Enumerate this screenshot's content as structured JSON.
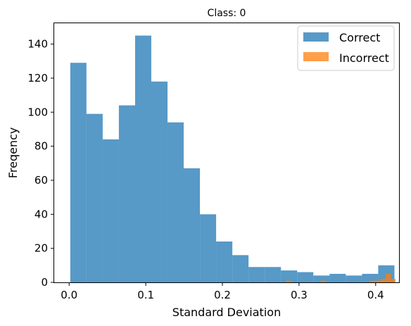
{
  "chart_data": {
    "type": "bar",
    "title": "Class: 0",
    "xlabel": "Standard Deviation",
    "ylabel": "Freqency",
    "xlim": [
      -0.0195,
      0.4305
    ],
    "ylim": [
      0,
      152.25
    ],
    "xticks": [
      {
        "value": 0.0,
        "label": "0.0"
      },
      {
        "value": 0.1,
        "label": "0.1"
      },
      {
        "value": 0.2,
        "label": "0.2"
      },
      {
        "value": 0.3,
        "label": "0.3"
      },
      {
        "value": 0.4,
        "label": "0.4"
      }
    ],
    "yticks": [
      {
        "value": 0,
        "label": "0"
      },
      {
        "value": 20,
        "label": "20"
      },
      {
        "value": 40,
        "label": "40"
      },
      {
        "value": 60,
        "label": "60"
      },
      {
        "value": 80,
        "label": "80"
      },
      {
        "value": 100,
        "label": "100"
      },
      {
        "value": 120,
        "label": "120"
      },
      {
        "value": 140,
        "label": "140"
      }
    ],
    "legend_position": "top-right",
    "grid": false,
    "series": [
      {
        "name": "Correct",
        "color": "#1f77b4",
        "opacity": 0.75,
        "bin_edges": [
          0.0015,
          0.0226,
          0.0438,
          0.0649,
          0.0861,
          0.1072,
          0.1284,
          0.1495,
          0.1707,
          0.1918,
          0.213,
          0.2341,
          0.2553,
          0.2764,
          0.2976,
          0.3187,
          0.3399,
          0.361,
          0.3822,
          0.4033,
          0.4245
        ],
        "counts": [
          129,
          99,
          84,
          104,
          145,
          118,
          94,
          67,
          40,
          24,
          16,
          9,
          9,
          7,
          6,
          4,
          5,
          4,
          5,
          10
        ]
      },
      {
        "name": "Incorrect",
        "color": "#ff7f0e",
        "opacity": 0.75,
        "bin_edges": [
          0.283,
          0.29,
          0.328,
          0.335,
          0.392,
          0.399,
          0.406,
          0.413,
          0.42,
          0.426
        ],
        "counts": [
          1,
          0,
          1,
          0,
          1,
          1,
          2,
          5,
          2
        ]
      }
    ]
  }
}
